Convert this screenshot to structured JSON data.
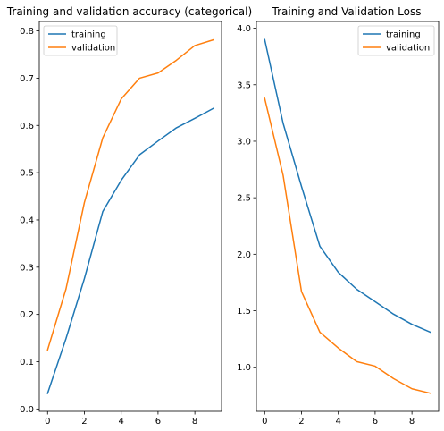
{
  "chart_data": [
    {
      "type": "line",
      "title": "Training and validation accuracy (categorical)",
      "xlabel": "",
      "ylabel": "",
      "xlim": [
        -0.45,
        9.45
      ],
      "ylim": [
        -0.005,
        0.82
      ],
      "xticks": [
        0,
        2,
        4,
        6,
        8
      ],
      "yticks": [
        0.0,
        0.1,
        0.2,
        0.3,
        0.4,
        0.5,
        0.6,
        0.7,
        0.8
      ],
      "grid": false,
      "legend_position": "top-left",
      "x": [
        0,
        1,
        2,
        3,
        4,
        5,
        6,
        7,
        8,
        9
      ],
      "series": [
        {
          "name": "training",
          "color": "#1f77b4",
          "values": [
            0.033,
            0.149,
            0.276,
            0.418,
            0.484,
            0.538,
            0.567,
            0.595,
            0.615,
            0.636
          ]
        },
        {
          "name": "validation",
          "color": "#ff7f0e",
          "values": [
            0.125,
            0.254,
            0.437,
            0.574,
            0.656,
            0.7,
            0.711,
            0.738,
            0.769,
            0.781
          ]
        }
      ]
    },
    {
      "type": "line",
      "title": "Training and Validation Loss",
      "xlabel": "",
      "ylabel": "",
      "xlim": [
        -0.45,
        9.45
      ],
      "ylim": [
        0.61,
        4.06
      ],
      "xticks": [
        0,
        2,
        4,
        6,
        8
      ],
      "yticks": [
        1.0,
        1.5,
        2.0,
        2.5,
        3.0,
        3.5,
        4.0
      ],
      "grid": false,
      "legend_position": "top-right",
      "x": [
        0,
        1,
        2,
        3,
        4,
        5,
        6,
        7,
        8,
        9
      ],
      "series": [
        {
          "name": "training",
          "color": "#1f77b4",
          "values": [
            3.9,
            3.16,
            2.6,
            2.07,
            1.84,
            1.69,
            1.58,
            1.47,
            1.38,
            1.31
          ]
        },
        {
          "name": "validation",
          "color": "#ff7f0e",
          "values": [
            3.38,
            2.7,
            1.67,
            1.31,
            1.17,
            1.05,
            1.01,
            0.9,
            0.81,
            0.77
          ]
        }
      ]
    }
  ]
}
